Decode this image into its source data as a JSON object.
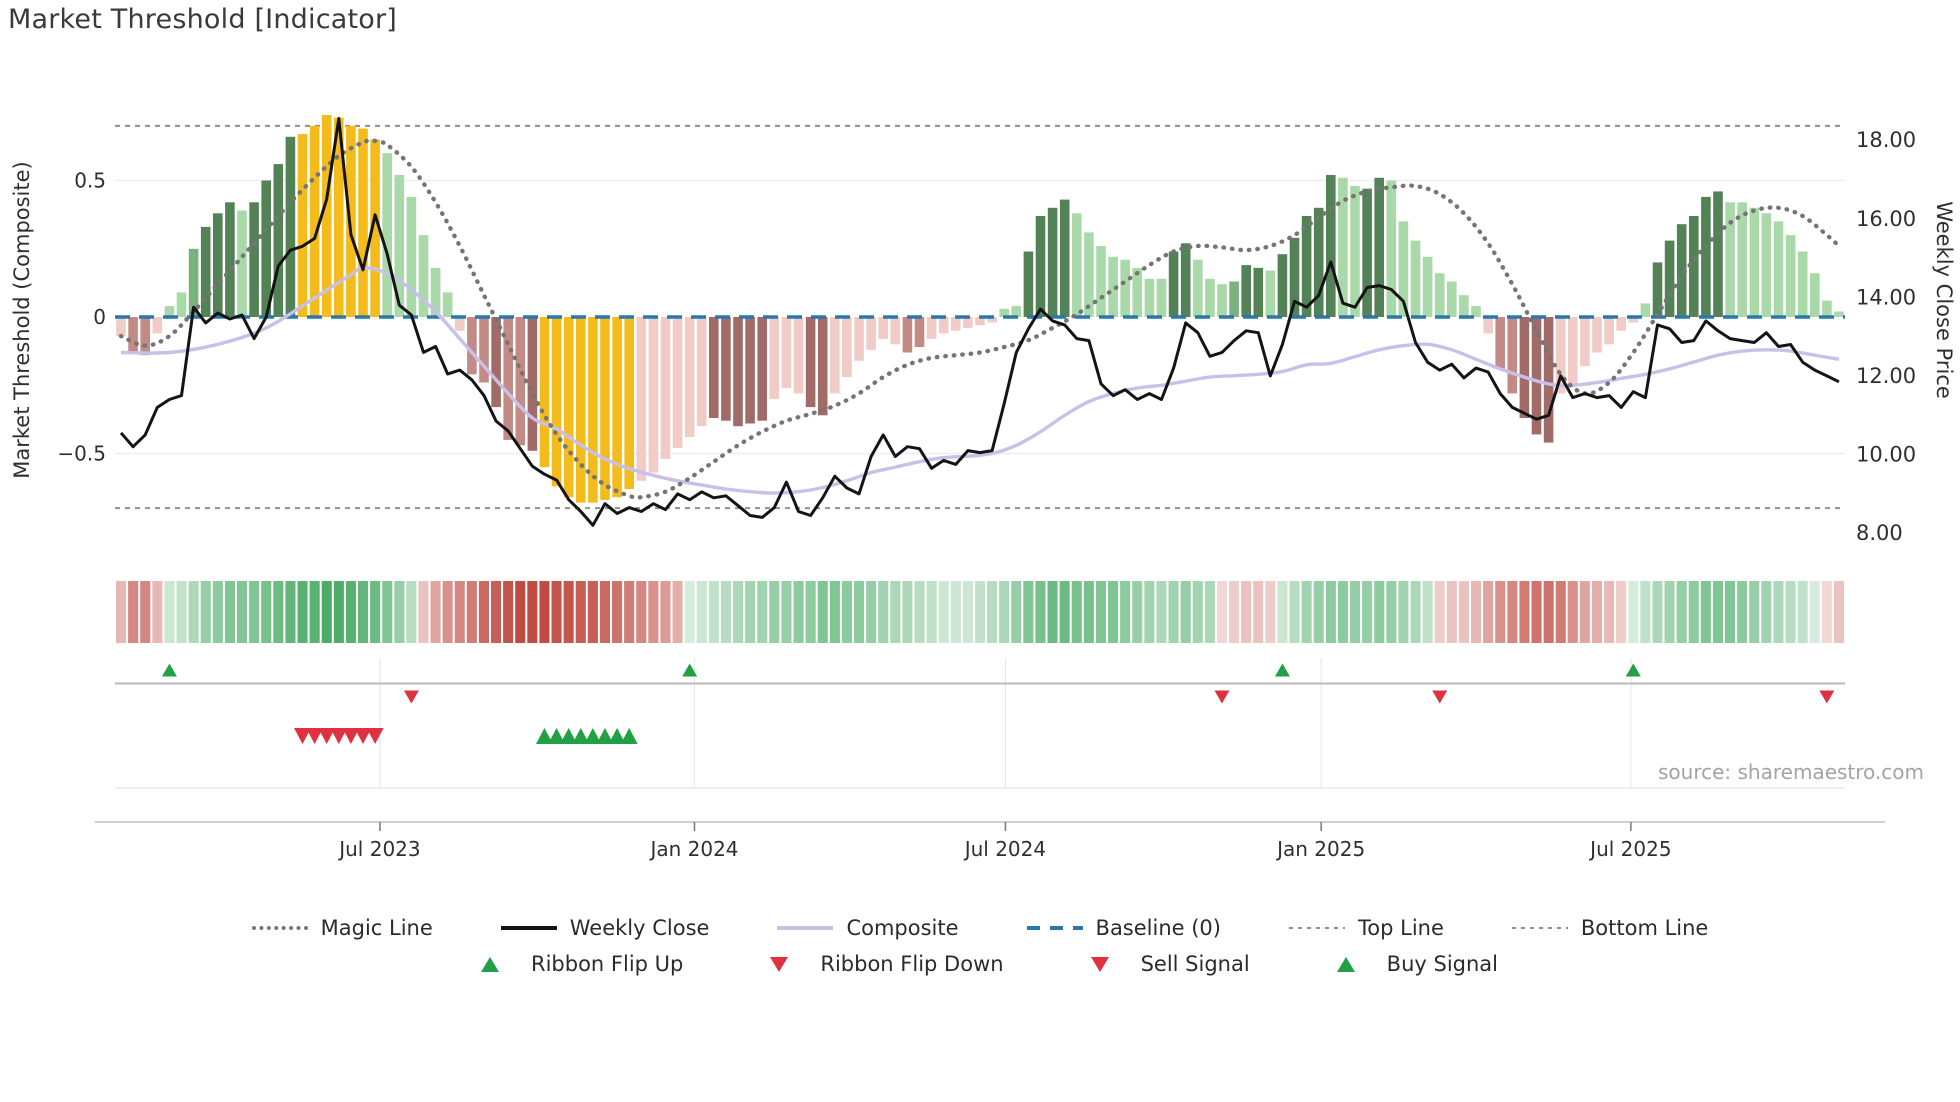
{
  "title": "Market Threshold [Indicator]",
  "source": "source: sharemaestro.com",
  "axes": {
    "left": {
      "title": "Market Threshold (Composite)",
      "ticks": [
        {
          "v": 0.5,
          "label": "0.5"
        },
        {
          "v": 0,
          "label": "0"
        },
        {
          "v": -0.5,
          "label": "−0.5"
        }
      ]
    },
    "right": {
      "title": "Weekly Close Price",
      "ticks": [
        {
          "v": 18,
          "label": "18.00"
        },
        {
          "v": 16,
          "label": "16.00"
        },
        {
          "v": 14,
          "label": "14.00"
        },
        {
          "v": 12,
          "label": "12.00"
        },
        {
          "v": 10,
          "label": "10.00"
        },
        {
          "v": 8,
          "label": "8.00"
        }
      ]
    },
    "x": {
      "ticks": [
        {
          "week": 21.4,
          "label": "Jul 2023"
        },
        {
          "week": 47.4,
          "label": "Jan 2024"
        },
        {
          "week": 73.1,
          "label": "Jul 2024"
        },
        {
          "week": 99.2,
          "label": "Jan 2025"
        },
        {
          "week": 124.8,
          "label": "Jul 2025"
        }
      ]
    }
  },
  "legend": {
    "row1": [
      {
        "label": "Magic Line",
        "type": "magic"
      },
      {
        "label": "Weekly Close",
        "type": "close"
      },
      {
        "label": "Composite",
        "type": "composite"
      },
      {
        "label": "Baseline (0)",
        "type": "baseline"
      },
      {
        "label": "Top Line",
        "type": "topline"
      },
      {
        "label": "Bottom Line",
        "type": "bottomline"
      }
    ],
    "row2": [
      {
        "label": "Ribbon Flip Up",
        "type": "flip-up"
      },
      {
        "label": "Ribbon Flip Down",
        "type": "flip-down"
      },
      {
        "label": "Sell Signal",
        "type": "sell"
      },
      {
        "label": "Buy Signal",
        "type": "buy"
      }
    ]
  },
  "colors": {
    "bar_light_green": "#a9d8a9",
    "bar_mid_green": "#79b27c",
    "bar_dark_green": "#538257",
    "bar_yellow": "#f3bb1b",
    "bar_light_pink": "#f1cbc5",
    "bar_rose": "#c28b86",
    "bar_dark_mauve": "#a16b67",
    "baseline_blue": "#2878b0",
    "magic_gray": "#757575",
    "close_black": "#141414",
    "composite_lavender": "#c9c0ea",
    "band_gray": "#8f8f8f",
    "grid": "#ededf3",
    "signal_green": "#22a045",
    "signal_red": "#e0313f",
    "ribbon_green_rgb": "47,158,79",
    "ribbon_red_rgb": "185,55,45",
    "axis_text": "#2f2f2f",
    "spine": "#c9c9c9",
    "panel_line": "#b9b9b9",
    "panel_grid": "#e8e8e8",
    "source_text": "#a3a3a3"
  },
  "chart_data": {
    "type": "bar+line composite indicator with price overlay",
    "weeks": 143,
    "x_range_note": "weekly points, late Jan 2023 to early Nov 2025",
    "baseline": 0,
    "top_line": 0.7,
    "bottom_line": -0.7,
    "left_ylim": [
      -0.85,
      0.85
    ],
    "right_ylim": [
      7.6,
      18.9
    ],
    "bar_values": [
      -0.07,
      -0.13,
      -0.14,
      -0.06,
      0.04,
      0.09,
      0.25,
      0.33,
      0.38,
      0.42,
      0.39,
      0.42,
      0.5,
      0.56,
      0.66,
      0.67,
      0.7,
      0.74,
      0.73,
      0.7,
      0.69,
      0.65,
      0.6,
      0.52,
      0.44,
      0.3,
      0.18,
      0.09,
      -0.05,
      -0.21,
      -0.24,
      -0.33,
      -0.45,
      -0.47,
      -0.49,
      -0.55,
      -0.62,
      -0.66,
      -0.68,
      -0.68,
      -0.67,
      -0.66,
      -0.63,
      -0.6,
      -0.57,
      -0.52,
      -0.48,
      -0.44,
      -0.4,
      -0.37,
      -0.38,
      -0.4,
      -0.39,
      -0.38,
      -0.3,
      -0.26,
      -0.28,
      -0.33,
      -0.36,
      -0.28,
      -0.22,
      -0.16,
      -0.12,
      -0.08,
      -0.1,
      -0.13,
      -0.11,
      -0.08,
      -0.06,
      -0.05,
      -0.04,
      -0.03,
      -0.02,
      0.03,
      0.04,
      0.24,
      0.37,
      0.4,
      0.43,
      0.38,
      0.31,
      0.26,
      0.22,
      0.21,
      0.18,
      0.14,
      0.14,
      0.24,
      0.27,
      0.21,
      0.14,
      0.12,
      0.13,
      0.19,
      0.18,
      0.17,
      0.23,
      0.29,
      0.37,
      0.4,
      0.52,
      0.51,
      0.48,
      0.47,
      0.51,
      0.5,
      0.35,
      0.28,
      0.22,
      0.16,
      0.13,
      0.08,
      0.04,
      -0.06,
      -0.19,
      -0.28,
      -0.37,
      -0.43,
      -0.46,
      -0.28,
      -0.25,
      -0.18,
      -0.13,
      -0.1,
      -0.05,
      -0.02,
      0.05,
      0.2,
      0.28,
      0.34,
      0.37,
      0.44,
      0.46,
      0.42,
      0.42,
      0.4,
      0.38,
      0.35,
      0.3,
      0.24,
      0.16,
      0.06,
      0.02
    ],
    "bar_colors": [
      "p1",
      "p2",
      "p2",
      "p1",
      "g1",
      "g1",
      "g2",
      "g3",
      "g3",
      "g3",
      "g1",
      "g3",
      "g3",
      "g3",
      "g3",
      "y",
      "y",
      "y",
      "y",
      "y",
      "y",
      "y",
      "g1",
      "g1",
      "g1",
      "g1",
      "g1",
      "g1",
      "p1",
      "p2",
      "p2",
      "p3",
      "p2",
      "p2",
      "p3",
      "y",
      "y",
      "y",
      "y",
      "y",
      "y",
      "y",
      "y",
      "p1",
      "p1",
      "p1",
      "p1",
      "p1",
      "p1",
      "p3",
      "p3",
      "p3",
      "p3",
      "p3",
      "p1",
      "p1",
      "p1",
      "p3",
      "p3",
      "p1",
      "p1",
      "p1",
      "p1",
      "p1",
      "p1",
      "p2",
      "p2",
      "p1",
      "p1",
      "p1",
      "p1",
      "p1",
      "p1",
      "g1",
      "g1",
      "g3",
      "g3",
      "g3",
      "g3",
      "g1",
      "g1",
      "g1",
      "g1",
      "g1",
      "g1",
      "g1",
      "g1",
      "g3",
      "g3",
      "g1",
      "g1",
      "g1",
      "g2",
      "g3",
      "g3",
      "g1",
      "g3",
      "g3",
      "g3",
      "g3",
      "g3",
      "g1",
      "g1",
      "g3",
      "g3",
      "g1",
      "g1",
      "g1",
      "g1",
      "g1",
      "g1",
      "g1",
      "g1",
      "p1",
      "p2",
      "p2",
      "p3",
      "p3",
      "p3",
      "p1",
      "p1",
      "p1",
      "p1",
      "p1",
      "p1",
      "p1",
      "g1",
      "g3",
      "g3",
      "g3",
      "g3",
      "g3",
      "g3",
      "g1",
      "g1",
      "g1",
      "g1",
      "g1",
      "g1",
      "g1",
      "g1",
      "g1",
      "g1"
    ],
    "weekly_close": [
      10.55,
      10.2,
      10.5,
      11.2,
      11.4,
      11.5,
      13.75,
      13.35,
      13.6,
      13.45,
      13.55,
      12.95,
      13.5,
      14.8,
      15.2,
      15.3,
      15.5,
      16.5,
      18.55,
      15.6,
      14.7,
      16.1,
      15.1,
      13.8,
      13.55,
      12.6,
      12.75,
      12.05,
      12.15,
      11.9,
      11.5,
      10.85,
      10.6,
      10.15,
      9.7,
      9.5,
      9.35,
      8.85,
      8.55,
      8.2,
      8.75,
      8.5,
      8.65,
      8.55,
      8.75,
      8.6,
      9.0,
      8.85,
      9.05,
      8.9,
      8.95,
      8.7,
      8.45,
      8.4,
      8.65,
      9.3,
      8.55,
      8.45,
      8.9,
      9.45,
      9.15,
      9.0,
      9.95,
      10.5,
      9.95,
      10.2,
      10.15,
      9.65,
      9.85,
      9.75,
      10.1,
      10.05,
      10.1,
      11.3,
      12.6,
      13.2,
      13.7,
      13.4,
      13.3,
      12.95,
      12.9,
      11.8,
      11.5,
      11.65,
      11.4,
      11.55,
      11.4,
      12.2,
      13.35,
      13.1,
      12.5,
      12.6,
      12.9,
      13.15,
      13.1,
      12.0,
      12.8,
      13.9,
      13.75,
      14.05,
      14.9,
      13.85,
      13.75,
      14.25,
      14.3,
      14.2,
      13.9,
      12.85,
      12.35,
      12.15,
      12.3,
      11.95,
      12.2,
      12.1,
      11.55,
      11.2,
      11.05,
      10.9,
      11.0,
      12.0,
      11.45,
      11.55,
      11.45,
      11.5,
      11.2,
      11.6,
      11.45,
      13.3,
      13.2,
      12.85,
      12.9,
      13.4,
      13.15,
      12.95,
      12.9,
      12.85,
      13.1,
      12.75,
      12.8,
      12.35,
      12.15,
      12.0,
      11.85
    ],
    "magic_line_points": [
      [
        0,
        -0.07
      ],
      [
        2,
        -0.105
      ],
      [
        4,
        -0.07
      ],
      [
        6,
        0.02
      ],
      [
        8,
        0.12
      ],
      [
        10,
        0.22
      ],
      [
        12,
        0.32
      ],
      [
        14,
        0.42
      ],
      [
        16,
        0.51
      ],
      [
        18,
        0.59
      ],
      [
        20,
        0.64
      ],
      [
        21,
        0.645
      ],
      [
        22,
        0.63
      ],
      [
        24,
        0.55
      ],
      [
        26,
        0.42
      ],
      [
        28,
        0.26
      ],
      [
        30,
        0.08
      ],
      [
        32,
        -0.1
      ],
      [
        34,
        -0.28
      ],
      [
        36,
        -0.43
      ],
      [
        38,
        -0.54
      ],
      [
        40,
        -0.615
      ],
      [
        42,
        -0.655
      ],
      [
        43,
        -0.66
      ],
      [
        45,
        -0.64
      ],
      [
        47,
        -0.59
      ],
      [
        49,
        -0.53
      ],
      [
        51,
        -0.47
      ],
      [
        53,
        -0.42
      ],
      [
        55,
        -0.38
      ],
      [
        57,
        -0.355
      ],
      [
        59,
        -0.325
      ],
      [
        61,
        -0.28
      ],
      [
        63,
        -0.22
      ],
      [
        65,
        -0.175
      ],
      [
        67,
        -0.15
      ],
      [
        69,
        -0.14
      ],
      [
        71,
        -0.13
      ],
      [
        73,
        -0.11
      ],
      [
        75,
        -0.085
      ],
      [
        77,
        -0.04
      ],
      [
        79,
        0.01
      ],
      [
        81,
        0.07
      ],
      [
        83,
        0.13
      ],
      [
        85,
        0.19
      ],
      [
        87,
        0.24
      ],
      [
        89,
        0.26
      ],
      [
        91,
        0.255
      ],
      [
        93,
        0.245
      ],
      [
        95,
        0.26
      ],
      [
        97,
        0.3
      ],
      [
        99,
        0.365
      ],
      [
        101,
        0.425
      ],
      [
        103,
        0.46
      ],
      [
        105,
        0.475
      ],
      [
        107,
        0.48
      ],
      [
        109,
        0.45
      ],
      [
        111,
        0.38
      ],
      [
        113,
        0.27
      ],
      [
        115,
        0.12
      ],
      [
        117,
        -0.05
      ],
      [
        119,
        -0.21
      ],
      [
        121,
        -0.28
      ],
      [
        123,
        -0.24
      ],
      [
        125,
        -0.13
      ],
      [
        127,
        0.01
      ],
      [
        129,
        0.15
      ],
      [
        131,
        0.26
      ],
      [
        133,
        0.345
      ],
      [
        135,
        0.39
      ],
      [
        137,
        0.4
      ],
      [
        139,
        0.37
      ],
      [
        141,
        0.3
      ],
      [
        142,
        0.26
      ]
    ],
    "composite_line_points": [
      [
        0,
        -0.13
      ],
      [
        4,
        -0.13
      ],
      [
        8,
        -0.1
      ],
      [
        12,
        -0.04
      ],
      [
        16,
        0.07
      ],
      [
        19,
        0.155
      ],
      [
        20,
        0.18
      ],
      [
        22,
        0.16
      ],
      [
        24,
        0.1
      ],
      [
        26,
        0.02
      ],
      [
        28,
        -0.08
      ],
      [
        30,
        -0.18
      ],
      [
        32,
        -0.28
      ],
      [
        34,
        -0.37
      ],
      [
        36,
        -0.41
      ],
      [
        38,
        -0.47
      ],
      [
        40,
        -0.52
      ],
      [
        42,
        -0.555
      ],
      [
        44,
        -0.58
      ],
      [
        46,
        -0.6
      ],
      [
        48,
        -0.615
      ],
      [
        50,
        -0.63
      ],
      [
        52,
        -0.64
      ],
      [
        54,
        -0.645
      ],
      [
        56,
        -0.64
      ],
      [
        58,
        -0.625
      ],
      [
        60,
        -0.6
      ],
      [
        62,
        -0.57
      ],
      [
        64,
        -0.55
      ],
      [
        66,
        -0.53
      ],
      [
        68,
        -0.515
      ],
      [
        70,
        -0.51
      ],
      [
        72,
        -0.5
      ],
      [
        74,
        -0.47
      ],
      [
        76,
        -0.42
      ],
      [
        78,
        -0.36
      ],
      [
        80,
        -0.31
      ],
      [
        82,
        -0.28
      ],
      [
        84,
        -0.26
      ],
      [
        86,
        -0.25
      ],
      [
        88,
        -0.235
      ],
      [
        90,
        -0.22
      ],
      [
        92,
        -0.215
      ],
      [
        94,
        -0.21
      ],
      [
        96,
        -0.2
      ],
      [
        98,
        -0.175
      ],
      [
        100,
        -0.17
      ],
      [
        102,
        -0.145
      ],
      [
        104,
        -0.12
      ],
      [
        106,
        -0.105
      ],
      [
        108,
        -0.1
      ],
      [
        110,
        -0.12
      ],
      [
        112,
        -0.155
      ],
      [
        114,
        -0.19
      ],
      [
        116,
        -0.22
      ],
      [
        118,
        -0.245
      ],
      [
        120,
        -0.25
      ],
      [
        122,
        -0.24
      ],
      [
        124,
        -0.225
      ],
      [
        126,
        -0.21
      ],
      [
        128,
        -0.19
      ],
      [
        130,
        -0.165
      ],
      [
        132,
        -0.14
      ],
      [
        134,
        -0.125
      ],
      [
        136,
        -0.12
      ],
      [
        138,
        -0.125
      ],
      [
        140,
        -0.14
      ],
      [
        142,
        -0.155
      ]
    ],
    "ribbon": [
      "r35",
      "r60",
      "r60",
      "r35",
      "g25",
      "g30",
      "g40",
      "g50",
      "g55",
      "g60",
      "g60",
      "g60",
      "g65",
      "g70",
      "g75",
      "g80",
      "g80",
      "g85",
      "g85",
      "g80",
      "g75",
      "g70",
      "g60",
      "g50",
      "g35",
      "r30",
      "r45",
      "r55",
      "r60",
      "r65",
      "r75",
      "r80",
      "r85",
      "r90",
      "r90",
      "r90",
      "r85",
      "r85",
      "r80",
      "r80",
      "r75",
      "r70",
      "r65",
      "r60",
      "r55",
      "r50",
      "r40",
      "g20",
      "g25",
      "g30",
      "g35",
      "g40",
      "g45",
      "g45",
      "g50",
      "g50",
      "g55",
      "g55",
      "g60",
      "g60",
      "g55",
      "g55",
      "g50",
      "g45",
      "g40",
      "g40",
      "g35",
      "g30",
      "g25",
      "g25",
      "g25",
      "g30",
      "g35",
      "g40",
      "g50",
      "g60",
      "g65",
      "g70",
      "g70",
      "g65",
      "g65",
      "g60",
      "g60",
      "g55",
      "g50",
      "g45",
      "g40",
      "g45",
      "g50",
      "g45",
      "g40",
      "r20",
      "r25",
      "r30",
      "r30",
      "r25",
      "g25",
      "g35",
      "g45",
      "g50",
      "g55",
      "g55",
      "g50",
      "g50",
      "g55",
      "g50",
      "g45",
      "g40",
      "g30",
      "r25",
      "r30",
      "r30",
      "r35",
      "r45",
      "r55",
      "r60",
      "r65",
      "r70",
      "r70",
      "r65",
      "r55",
      "r45",
      "r40",
      "r35",
      "r25",
      "g20",
      "g30",
      "g40",
      "g45",
      "g50",
      "g55",
      "g60",
      "g60",
      "g60",
      "g55",
      "g50",
      "g45",
      "g40",
      "g35",
      "g30",
      "g20",
      "r20",
      "r30"
    ],
    "signals": {
      "ribbon_flip_up": [
        4,
        47,
        96,
        125
      ],
      "ribbon_flip_down": [
        24,
        91,
        109,
        141
      ],
      "sell": [
        15,
        16,
        17,
        18,
        19,
        20,
        21
      ],
      "buy": [
        35,
        36,
        37,
        38,
        39,
        40,
        41,
        42
      ]
    }
  }
}
